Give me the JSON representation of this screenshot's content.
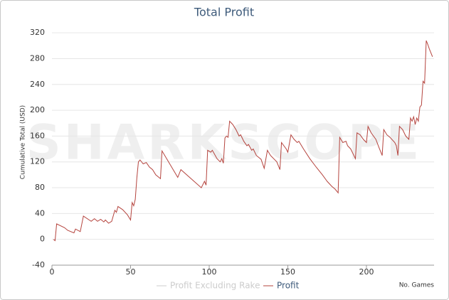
{
  "chart_data": {
    "type": "line",
    "title": "Total Profit",
    "watermark": "SHARKSCOPE",
    "y_label": "Cumulative Total (USD)",
    "x_label": "No. Games",
    "xlim": [
      0,
      243
    ],
    "xticks": [
      0,
      50,
      100,
      150,
      200
    ],
    "ylim": [
      -40,
      340
    ],
    "yticks": [
      -40,
      0,
      40,
      80,
      120,
      160,
      200,
      240,
      280,
      320
    ],
    "grid": true,
    "legend": "bottom",
    "series": [
      {
        "name": "Profit Excluding Rake",
        "color": "#cccccc",
        "hidden": true
      },
      {
        "name": "Profit",
        "color": "#b5443e",
        "x": [
          1,
          2,
          3,
          8,
          10,
          14,
          15,
          18,
          20,
          25,
          27,
          29,
          31,
          33,
          34,
          36,
          38,
          40,
          41,
          42,
          45,
          48,
          50,
          51,
          52,
          53,
          54,
          55,
          56,
          58,
          60,
          62,
          64,
          66,
          68,
          69,
          70,
          80,
          82,
          95,
          97,
          98,
          99,
          101,
          102,
          105,
          107,
          108,
          109,
          110,
          111,
          112,
          113,
          115,
          117,
          119,
          120,
          122,
          124,
          125,
          127,
          128,
          130,
          133,
          135,
          137,
          139,
          141,
          143,
          145,
          146,
          149,
          150,
          152,
          154,
          156,
          157,
          160,
          164,
          168,
          172,
          175,
          178,
          180,
          182,
          183,
          185,
          187,
          188,
          190,
          192,
          193,
          194,
          196,
          198,
          200,
          201,
          203,
          206,
          208,
          210,
          211,
          213,
          215,
          218,
          219,
          220,
          221,
          223,
          225,
          227,
          228,
          229,
          230,
          231,
          232,
          233,
          234,
          235,
          236,
          237,
          238,
          239,
          240,
          242
        ],
        "values": [
          0,
          -2,
          24,
          18,
          14,
          10,
          16,
          12,
          36,
          28,
          32,
          28,
          31,
          27,
          30,
          25,
          28,
          45,
          42,
          51,
          46,
          38,
          30,
          57,
          52,
          62,
          95,
          120,
          123,
          117,
          119,
          112,
          108,
          100,
          96,
          94,
          137,
          96,
          108,
          80,
          90,
          84,
          138,
          135,
          138,
          125,
          120,
          125,
          118,
          157,
          160,
          158,
          183,
          178,
          170,
          160,
          162,
          152,
          145,
          147,
          138,
          140,
          130,
          124,
          110,
          138,
          130,
          125,
          120,
          108,
          150,
          140,
          135,
          162,
          155,
          150,
          152,
          140,
          125,
          112,
          100,
          90,
          82,
          78,
          72,
          158,
          150,
          152,
          145,
          140,
          130,
          125,
          165,
          162,
          155,
          150,
          175,
          165,
          155,
          142,
          130,
          170,
          162,
          158,
          150,
          145,
          130,
          175,
          170,
          160,
          155,
          188,
          183,
          190,
          178,
          188,
          183,
          205,
          208,
          245,
          242,
          308,
          302,
          295,
          283
        ]
      }
    ]
  }
}
